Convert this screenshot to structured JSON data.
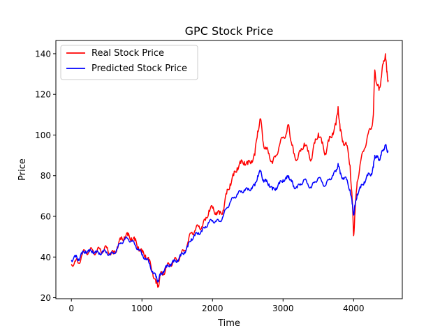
{
  "chart_data": {
    "type": "line",
    "title": "GPC Stock Price",
    "xlabel": "Time",
    "ylabel": "Price",
    "xlim": [
      -220,
      4690
    ],
    "ylim": [
      19.5,
      146.5
    ],
    "xticks": [
      0,
      1000,
      2000,
      3000,
      4000
    ],
    "yticks": [
      20,
      40,
      60,
      80,
      100,
      120,
      140
    ],
    "xtick_labels": [
      "0",
      "1000",
      "2000",
      "3000",
      "4000"
    ],
    "ytick_labels": [
      "20",
      "40",
      "60",
      "80",
      "100",
      "120",
      "140"
    ],
    "legend_position": "top-left",
    "grid": false,
    "series": [
      {
        "name": "Real Stock Price",
        "color": "#ff0000",
        "points": [
          [
            0,
            36.5
          ],
          [
            60,
            38
          ],
          [
            100,
            37
          ],
          [
            150,
            41
          ],
          [
            200,
            43
          ],
          [
            250,
            42.5
          ],
          [
            300,
            43.5
          ],
          [
            350,
            42
          ],
          [
            400,
            44
          ],
          [
            450,
            43
          ],
          [
            500,
            44.5
          ],
          [
            550,
            42
          ],
          [
            600,
            41.5
          ],
          [
            650,
            45
          ],
          [
            700,
            48.5
          ],
          [
            750,
            50
          ],
          [
            800,
            50.5
          ],
          [
            850,
            49.5
          ],
          [
            900,
            48
          ],
          [
            950,
            45
          ],
          [
            1000,
            42
          ],
          [
            1050,
            41
          ],
          [
            1100,
            38
          ],
          [
            1150,
            33
          ],
          [
            1200,
            27
          ],
          [
            1230,
            26
          ],
          [
            1260,
            31
          ],
          [
            1300,
            32
          ],
          [
            1350,
            35
          ],
          [
            1400,
            36.5
          ],
          [
            1450,
            38
          ],
          [
            1500,
            38.5
          ],
          [
            1550,
            41
          ],
          [
            1600,
            43
          ],
          [
            1650,
            47
          ],
          [
            1700,
            52
          ],
          [
            1750,
            53
          ],
          [
            1800,
            55
          ],
          [
            1850,
            55
          ],
          [
            1900,
            58
          ],
          [
            1950,
            63
          ],
          [
            2000,
            64
          ],
          [
            2050,
            62
          ],
          [
            2100,
            61
          ],
          [
            2150,
            63
          ],
          [
            2200,
            71
          ],
          [
            2250,
            76
          ],
          [
            2300,
            80
          ],
          [
            2350,
            84
          ],
          [
            2400,
            86
          ],
          [
            2450,
            87
          ],
          [
            2500,
            85.5
          ],
          [
            2550,
            87.5
          ],
          [
            2600,
            90
          ],
          [
            2640,
            102
          ],
          [
            2680,
            108
          ],
          [
            2720,
            96
          ],
          [
            2760,
            93
          ],
          [
            2800,
            91
          ],
          [
            2850,
            86
          ],
          [
            2900,
            90
          ],
          [
            2950,
            95
          ],
          [
            3000,
            99
          ],
          [
            3050,
            101
          ],
          [
            3080,
            105
          ],
          [
            3120,
            96
          ],
          [
            3150,
            91
          ],
          [
            3200,
            88
          ],
          [
            3250,
            92
          ],
          [
            3300,
            96
          ],
          [
            3350,
            92
          ],
          [
            3400,
            88
          ],
          [
            3450,
            96
          ],
          [
            3500,
            101
          ],
          [
            3550,
            96
          ],
          [
            3600,
            91
          ],
          [
            3650,
            97
          ],
          [
            3700,
            101
          ],
          [
            3750,
            105
          ],
          [
            3780,
            114
          ],
          [
            3810,
            102
          ],
          [
            3850,
            97
          ],
          [
            3900,
            95
          ],
          [
            3950,
            85
          ],
          [
            3980,
            68
          ],
          [
            4000,
            50.5
          ],
          [
            4020,
            62
          ],
          [
            4050,
            77
          ],
          [
            4100,
            87
          ],
          [
            4150,
            93
          ],
          [
            4200,
            100
          ],
          [
            4250,
            103
          ],
          [
            4280,
            110
          ],
          [
            4300,
            132
          ],
          [
            4330,
            125
          ],
          [
            4360,
            122
          ],
          [
            4390,
            128
          ],
          [
            4420,
            135
          ],
          [
            4450,
            140
          ],
          [
            4470,
            131
          ],
          [
            4490,
            127
          ]
        ]
      },
      {
        "name": "Predicted Stock Price",
        "color": "#0000ff",
        "points": [
          [
            0,
            38.5
          ],
          [
            60,
            40
          ],
          [
            100,
            39
          ],
          [
            150,
            41.5
          ],
          [
            200,
            43
          ],
          [
            250,
            42.5
          ],
          [
            300,
            43
          ],
          [
            350,
            42
          ],
          [
            400,
            42
          ],
          [
            450,
            42.5
          ],
          [
            500,
            42.5
          ],
          [
            550,
            41
          ],
          [
            600,
            42
          ],
          [
            650,
            44
          ],
          [
            700,
            47
          ],
          [
            750,
            48.5
          ],
          [
            800,
            49
          ],
          [
            850,
            48
          ],
          [
            900,
            46
          ],
          [
            950,
            44
          ],
          [
            1000,
            41
          ],
          [
            1050,
            39.5
          ],
          [
            1100,
            37
          ],
          [
            1150,
            33
          ],
          [
            1200,
            30
          ],
          [
            1230,
            28.5
          ],
          [
            1260,
            31
          ],
          [
            1300,
            33
          ],
          [
            1350,
            35
          ],
          [
            1400,
            36.5
          ],
          [
            1450,
            37.5
          ],
          [
            1500,
            38.5
          ],
          [
            1550,
            40.5
          ],
          [
            1600,
            42.5
          ],
          [
            1650,
            45
          ],
          [
            1700,
            49
          ],
          [
            1750,
            50.5
          ],
          [
            1800,
            52
          ],
          [
            1850,
            52.5
          ],
          [
            1900,
            55
          ],
          [
            1950,
            57
          ],
          [
            2000,
            58
          ],
          [
            2050,
            57.5
          ],
          [
            2100,
            57.5
          ],
          [
            2150,
            60
          ],
          [
            2200,
            64
          ],
          [
            2250,
            67
          ],
          [
            2300,
            69
          ],
          [
            2350,
            71
          ],
          [
            2400,
            72
          ],
          [
            2450,
            73
          ],
          [
            2500,
            73
          ],
          [
            2550,
            74
          ],
          [
            2600,
            75
          ],
          [
            2640,
            80
          ],
          [
            2680,
            82
          ],
          [
            2720,
            78
          ],
          [
            2760,
            77
          ],
          [
            2800,
            76
          ],
          [
            2850,
            73
          ],
          [
            2900,
            74
          ],
          [
            2950,
            76
          ],
          [
            3000,
            78
          ],
          [
            3050,
            78.5
          ],
          [
            3080,
            80
          ],
          [
            3120,
            77
          ],
          [
            3150,
            75
          ],
          [
            3200,
            74
          ],
          [
            3250,
            76
          ],
          [
            3300,
            78
          ],
          [
            3350,
            76
          ],
          [
            3400,
            74
          ],
          [
            3450,
            77
          ],
          [
            3500,
            79
          ],
          [
            3550,
            77
          ],
          [
            3600,
            75
          ],
          [
            3650,
            78
          ],
          [
            3700,
            80
          ],
          [
            3750,
            82
          ],
          [
            3780,
            86
          ],
          [
            3810,
            81
          ],
          [
            3850,
            79
          ],
          [
            3900,
            78
          ],
          [
            3950,
            73
          ],
          [
            3980,
            66
          ],
          [
            4000,
            61
          ],
          [
            4020,
            65
          ],
          [
            4050,
            71
          ],
          [
            4100,
            74
          ],
          [
            4150,
            77
          ],
          [
            4200,
            80
          ],
          [
            4250,
            81
          ],
          [
            4280,
            84
          ],
          [
            4300,
            90
          ],
          [
            4330,
            89
          ],
          [
            4360,
            88
          ],
          [
            4390,
            90
          ],
          [
            4420,
            93
          ],
          [
            4450,
            95
          ],
          [
            4470,
            93
          ],
          [
            4490,
            92
          ]
        ]
      }
    ]
  }
}
